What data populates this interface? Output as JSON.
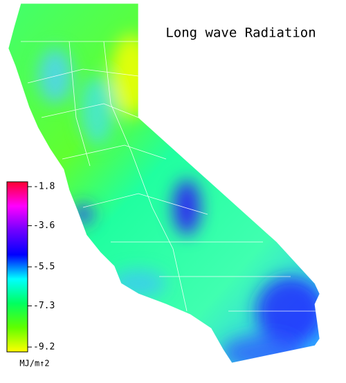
{
  "title": "Long wave Radiation",
  "colorbar": {
    "label": "MJ/m↑2",
    "lim": [
      -1.8,
      -9.2
    ],
    "ticks": [
      -1.8,
      -3.6,
      -5.5,
      -7.3,
      -9.2
    ],
    "colors": [
      "#ff0030",
      "#ff00ff",
      "#7000ff",
      "#0000ff",
      "#00ffff",
      "#00ff60",
      "#60ff00",
      "#ffff00"
    ]
  }
}
